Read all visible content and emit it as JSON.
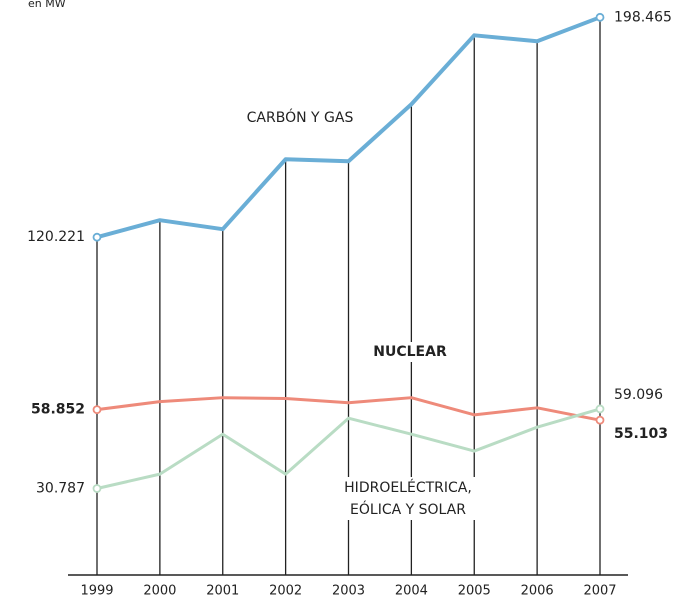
{
  "chart_data": {
    "type": "line",
    "y_axis_label": "en MW",
    "categories": [
      "1999",
      "2000",
      "2001",
      "2002",
      "2003",
      "2004",
      "2005",
      "2006",
      "2007"
    ],
    "ylim": [
      0,
      200000
    ],
    "series": [
      {
        "name": "CARBÓN Y GAS",
        "color": "#6aaed6",
        "values": [
          120221,
          126266,
          123066,
          147960,
          147250,
          167520,
          192060,
          189930,
          198465
        ],
        "value_labels": [
          "120.221",
          null,
          null,
          null,
          null,
          null,
          null,
          null,
          "198.465"
        ]
      },
      {
        "name": "NUCLEAR",
        "color": "#ee8a7a",
        "values": [
          58852,
          61700,
          63100,
          62800,
          61300,
          63100,
          57000,
          59500,
          55103
        ],
        "value_labels": [
          "58.852",
          null,
          null,
          null,
          null,
          null,
          null,
          null,
          "55.103"
        ]
      },
      {
        "name": "HIDROELÉCTRICA, EÓLICA Y SOLAR",
        "color": "#b9dcc4",
        "values": [
          30787,
          35900,
          50100,
          35900,
          55800,
          50100,
          44100,
          52600,
          59096
        ],
        "value_labels": [
          "30.787",
          null,
          null,
          null,
          null,
          null,
          null,
          null,
          "59.096"
        ]
      }
    ]
  }
}
